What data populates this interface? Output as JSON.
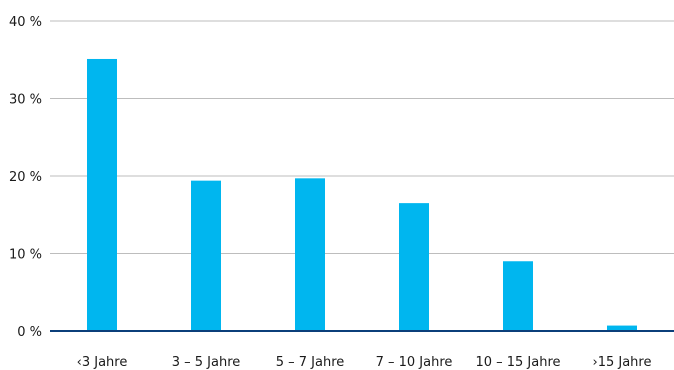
{
  "chart_data": {
    "type": "bar",
    "title": "",
    "xlabel": "",
    "ylabel": "",
    "categories": [
      "‹3 Jahre",
      "3 – 5 Jahre",
      "5 – 7 Jahre",
      "7 – 10 Jahre",
      "10 – 15 Jahre",
      "›15 Jahre"
    ],
    "values": [
      35.1,
      19.4,
      19.7,
      16.5,
      9.0,
      0.7
    ],
    "ylim": [
      0,
      40
    ],
    "yticks": [
      0,
      10,
      20,
      30,
      40
    ],
    "ytick_labels": [
      "0 %",
      "10 %",
      "20 %",
      "30 %",
      "40 %"
    ],
    "grid": true,
    "legend": "none",
    "colors": {
      "bar": "#00b6ef",
      "grid": "#bdbdbd",
      "baseline": "#0b3f7a"
    }
  }
}
